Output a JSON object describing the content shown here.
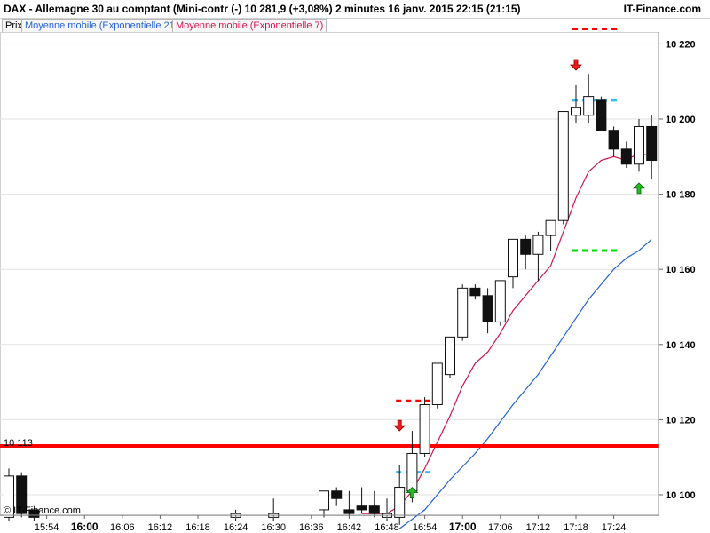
{
  "header": {
    "title": "DAX - Allemagne 30 au comptant (Mini-contr (-)     10 281,9 (+3,08%)     2 minutes   16 janv. 2015 22:15 (21:15)",
    "brand": "IT-Finance.com"
  },
  "legend": {
    "price_label": "Prix",
    "ema21_label": "Moyenne mobile (Exponentielle 21)",
    "ema7_label": "Moyenne mobile (Exponentielle 7)"
  },
  "watermark": "© IT-Finance.com",
  "colors": {
    "ema21": "#2563d7",
    "ema7": "#d0154b",
    "support_line": "#ff0000",
    "resistance_dash": "#ff0000",
    "target_dash": "#00dd00",
    "entry_dash": "#33bbee",
    "arrow_down": "#e81c1c",
    "arrow_up": "#22bb22",
    "bull_candle": "#ffffff",
    "bear_candle": "#111111"
  },
  "chart_data": {
    "type": "candlestick",
    "y_axis": {
      "ticks": [
        10100,
        10120,
        10140,
        10160,
        10180,
        10200,
        10220
      ],
      "tick_labels": [
        "10 100",
        "10 120",
        "10 140",
        "10 160",
        "10 180",
        "10 200",
        "10 220"
      ],
      "range": [
        10095,
        10225
      ],
      "grid": true
    },
    "x_axis": {
      "times": [
        "15:54",
        "16:00",
        "16:06",
        "16:12",
        "16:18",
        "16:24",
        "16:30",
        "16:36",
        "16:42",
        "16:48",
        "16:54",
        "17:00",
        "17:06",
        "17:12",
        "17:18",
        "17:24"
      ],
      "major": [
        "16:00",
        "17:00"
      ]
    },
    "candles": [
      {
        "i": 0,
        "o": 10094,
        "h": 10107,
        "l": 10093,
        "c": 10105
      },
      {
        "i": 1,
        "o": 10105,
        "h": 10106,
        "l": 10094,
        "c": 10095
      },
      {
        "i": 2,
        "o": 10096,
        "h": 10097,
        "l": 10093,
        "c": 10094
      },
      {
        "i": 18,
        "o": 10094,
        "h": 10096,
        "l": 10093,
        "c": 10095
      },
      {
        "i": 21,
        "o": 10094,
        "h": 10099,
        "l": 10093,
        "c": 10095
      },
      {
        "i": 25,
        "o": 10096,
        "h": 10101,
        "l": 10094,
        "c": 10101
      },
      {
        "i": 26,
        "o": 10101,
        "h": 10102,
        "l": 10097,
        "c": 10099
      },
      {
        "i": 27,
        "o": 10096,
        "h": 10101,
        "l": 10094,
        "c": 10095
      },
      {
        "i": 28,
        "o": 10097,
        "h": 10102,
        "l": 10095,
        "c": 10096
      },
      {
        "i": 29,
        "o": 10097,
        "h": 10101,
        "l": 10094,
        "c": 10095
      },
      {
        "i": 30,
        "o": 10094,
        "h": 10099,
        "l": 10093,
        "c": 10095
      },
      {
        "i": 31,
        "o": 10094,
        "h": 10108,
        "l": 10092,
        "c": 10102
      },
      {
        "i": 32,
        "o": 10101,
        "h": 10117,
        "l": 10098,
        "c": 10111
      },
      {
        "i": 33,
        "o": 10111,
        "h": 10126,
        "l": 10110,
        "c": 10124
      },
      {
        "i": 34,
        "o": 10124,
        "h": 10135,
        "l": 10123,
        "c": 10135
      },
      {
        "i": 35,
        "o": 10132,
        "h": 10142,
        "l": 10131,
        "c": 10142
      },
      {
        "i": 36,
        "o": 10142,
        "h": 10156,
        "l": 10141,
        "c": 10155
      },
      {
        "i": 37,
        "o": 10155,
        "h": 10156,
        "l": 10152,
        "c": 10153
      },
      {
        "i": 38,
        "o": 10153,
        "h": 10155,
        "l": 10143,
        "c": 10146
      },
      {
        "i": 39,
        "o": 10146,
        "h": 10157,
        "l": 10145,
        "c": 10157
      },
      {
        "i": 40,
        "o": 10158,
        "h": 10168,
        "l": 10155,
        "c": 10168
      },
      {
        "i": 41,
        "o": 10168,
        "h": 10169,
        "l": 10160,
        "c": 10164
      },
      {
        "i": 42,
        "o": 10164,
        "h": 10170,
        "l": 10157,
        "c": 10169
      },
      {
        "i": 43,
        "o": 10169,
        "h": 10173,
        "l": 10165,
        "c": 10173
      },
      {
        "i": 44,
        "o": 10173,
        "h": 10202,
        "l": 10172,
        "c": 10202
      },
      {
        "i": 45,
        "o": 10201,
        "h": 10209,
        "l": 10199,
        "c": 10203
      },
      {
        "i": 46,
        "o": 10201,
        "h": 10212,
        "l": 10199,
        "c": 10206
      },
      {
        "i": 47,
        "o": 10205,
        "h": 10206,
        "l": 10197,
        "c": 10197
      },
      {
        "i": 48,
        "o": 10197,
        "h": 10198,
        "l": 10190,
        "c": 10192
      },
      {
        "i": 49,
        "o": 10192,
        "h": 10194,
        "l": 10187,
        "c": 10188
      },
      {
        "i": 50,
        "o": 10188,
        "h": 10200,
        "l": 10186,
        "c": 10198
      },
      {
        "i": 51,
        "o": 10198,
        "h": 10201,
        "l": 10184,
        "c": 10189
      }
    ],
    "ema21": [
      {
        "i": 31,
        "v": 10091
      },
      {
        "i": 33,
        "v": 10096
      },
      {
        "i": 35,
        "v": 10104
      },
      {
        "i": 37,
        "v": 10111
      },
      {
        "i": 38,
        "v": 10115
      },
      {
        "i": 40,
        "v": 10124
      },
      {
        "i": 42,
        "v": 10132
      },
      {
        "i": 43,
        "v": 10137
      },
      {
        "i": 44,
        "v": 10142
      },
      {
        "i": 45,
        "v": 10147
      },
      {
        "i": 46,
        "v": 10152
      },
      {
        "i": 47,
        "v": 10156
      },
      {
        "i": 48,
        "v": 10160
      },
      {
        "i": 49,
        "v": 10163
      },
      {
        "i": 50,
        "v": 10165
      },
      {
        "i": 51,
        "v": 10168
      }
    ],
    "ema7": [
      {
        "i": 28,
        "v": 10095
      },
      {
        "i": 29,
        "v": 10095
      },
      {
        "i": 30,
        "v": 10095
      },
      {
        "i": 31,
        "v": 10097
      },
      {
        "i": 32,
        "v": 10101
      },
      {
        "i": 33,
        "v": 10107
      },
      {
        "i": 34,
        "v": 10114
      },
      {
        "i": 35,
        "v": 10121
      },
      {
        "i": 36,
        "v": 10129
      },
      {
        "i": 37,
        "v": 10135
      },
      {
        "i": 38,
        "v": 10138
      },
      {
        "i": 39,
        "v": 10143
      },
      {
        "i": 40,
        "v": 10149
      },
      {
        "i": 41,
        "v": 10153
      },
      {
        "i": 42,
        "v": 10157
      },
      {
        "i": 43,
        "v": 10161
      },
      {
        "i": 44,
        "v": 10170
      },
      {
        "i": 45,
        "v": 10179
      },
      {
        "i": 46,
        "v": 10186
      },
      {
        "i": 47,
        "v": 10189
      },
      {
        "i": 48,
        "v": 10190
      },
      {
        "i": 49,
        "v": 10189
      },
      {
        "i": 50,
        "v": 10191
      },
      {
        "i": 51,
        "v": 10190
      }
    ],
    "support_line": {
      "value": 10113,
      "label": "10 113"
    },
    "dashed_levels": [
      {
        "kind": "resistance",
        "value": 10224,
        "from": 45,
        "to": 48
      },
      {
        "kind": "entry",
        "value": 10205,
        "from": 45,
        "to": 48
      },
      {
        "kind": "target",
        "value": 10165,
        "from": 45,
        "to": 48
      },
      {
        "kind": "resistance",
        "value": 10125,
        "from": 31,
        "to": 33
      },
      {
        "kind": "entry",
        "value": 10106,
        "from": 31,
        "to": 33
      }
    ],
    "signals": [
      {
        "type": "sell",
        "i": 31,
        "value": 10117
      },
      {
        "type": "buy",
        "i": 32,
        "value": 10102
      },
      {
        "type": "sell",
        "i": 45,
        "value": 10213
      },
      {
        "type": "buy",
        "i": 50,
        "value": 10183
      }
    ]
  }
}
